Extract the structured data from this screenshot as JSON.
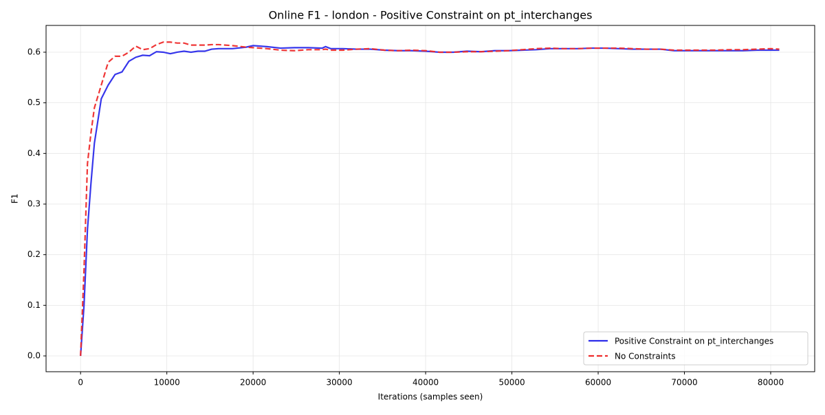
{
  "chart_data": {
    "type": "line",
    "title": "Online F1 - london - Positive Constraint on pt_interchanges",
    "x_label": "Iterations (samples seen)",
    "y_label": "F1",
    "x": [
      0,
      400,
      800,
      1200,
      1600,
      2400,
      3200,
      4000,
      4800,
      5600,
      6400,
      7200,
      8000,
      8800,
      9600,
      10400,
      11200,
      12000,
      12800,
      13600,
      14400,
      15200,
      16000,
      17600,
      19200,
      20000,
      21600,
      23200,
      24800,
      26400,
      28000,
      28400,
      29000,
      30400,
      32000,
      33600,
      35200,
      36800,
      38400,
      40000,
      41600,
      43200,
      44800,
      46400,
      48000,
      49600,
      51200,
      52800,
      54400,
      56000,
      57600,
      59200,
      60800,
      62400,
      64000,
      65600,
      67200,
      68800,
      70400,
      72000,
      73600,
      75200,
      76800,
      78400,
      80000,
      81000
    ],
    "series": [
      {
        "name": "Positive Constraint on pt_interchanges",
        "color": "#2b2bea",
        "dash": false,
        "values": [
          0,
          0.1,
          0.25,
          0.34,
          0.42,
          0.508,
          0.535,
          0.556,
          0.561,
          0.582,
          0.59,
          0.594,
          0.593,
          0.601,
          0.6,
          0.597,
          0.6,
          0.602,
          0.6,
          0.602,
          0.602,
          0.606,
          0.607,
          0.607,
          0.61,
          0.613,
          0.611,
          0.608,
          0.609,
          0.609,
          0.608,
          0.611,
          0.607,
          0.607,
          0.606,
          0.606,
          0.604,
          0.603,
          0.603,
          0.602,
          0.6,
          0.6,
          0.602,
          0.601,
          0.603,
          0.603,
          0.604,
          0.605,
          0.607,
          0.607,
          0.607,
          0.608,
          0.608,
          0.607,
          0.606,
          0.606,
          0.606,
          0.603,
          0.603,
          0.603,
          0.603,
          0.603,
          0.603,
          0.604,
          0.604,
          0.604
        ]
      },
      {
        "name": "No Constraints",
        "color": "#ee2b2b",
        "dash": true,
        "values": [
          0,
          0.17,
          0.38,
          0.44,
          0.49,
          0.535,
          0.58,
          0.592,
          0.592,
          0.6,
          0.612,
          0.605,
          0.607,
          0.615,
          0.62,
          0.62,
          0.618,
          0.618,
          0.614,
          0.614,
          0.614,
          0.615,
          0.615,
          0.613,
          0.61,
          0.609,
          0.607,
          0.604,
          0.603,
          0.605,
          0.605,
          0.606,
          0.604,
          0.604,
          0.606,
          0.607,
          0.604,
          0.603,
          0.604,
          0.603,
          0.6,
          0.6,
          0.601,
          0.601,
          0.602,
          0.603,
          0.605,
          0.607,
          0.608,
          0.607,
          0.607,
          0.608,
          0.608,
          0.608,
          0.607,
          0.606,
          0.606,
          0.604,
          0.604,
          0.604,
          0.604,
          0.605,
          0.605,
          0.606,
          0.607,
          0.606
        ]
      }
    ],
    "xlim": [
      -4000,
      85100
    ],
    "ylim": [
      -0.0312,
      0.6529
    ],
    "xticks": [
      0,
      10000,
      20000,
      30000,
      40000,
      50000,
      60000,
      70000,
      80000
    ],
    "yticks": [
      {
        "value": 0,
        "label": "0.0"
      },
      0.1,
      0.2,
      0.3,
      0.4,
      0.5,
      0.6
    ],
    "grid": true,
    "legend": "lower right"
  }
}
